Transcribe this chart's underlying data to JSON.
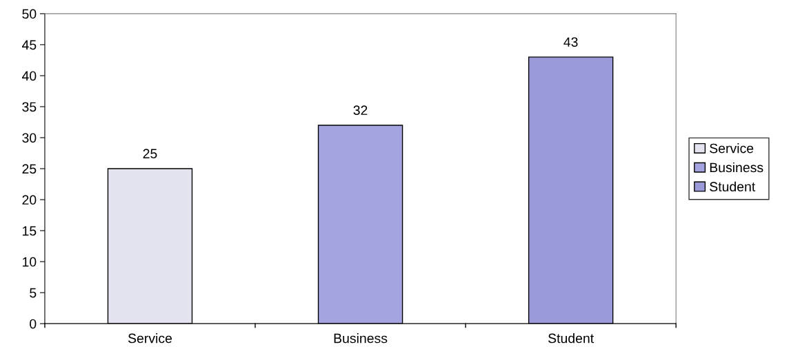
{
  "chart_data": {
    "type": "bar",
    "categories": [
      "Service",
      "Business",
      "Student"
    ],
    "series": [
      {
        "name": "Service",
        "color": "#e4e4f0",
        "values": [
          25,
          null,
          null
        ]
      },
      {
        "name": "Business",
        "color": "#a4a4e0",
        "values": [
          null,
          32,
          null
        ]
      },
      {
        "name": "Student",
        "color": "#9a9ad8",
        "values": [
          null,
          null,
          43
        ]
      }
    ],
    "ylim": [
      0,
      50
    ],
    "yticks": [
      0,
      5,
      10,
      15,
      20,
      25,
      30,
      35,
      40,
      45,
      50
    ],
    "data_labels": true,
    "legend": "right",
    "grid": false
  }
}
